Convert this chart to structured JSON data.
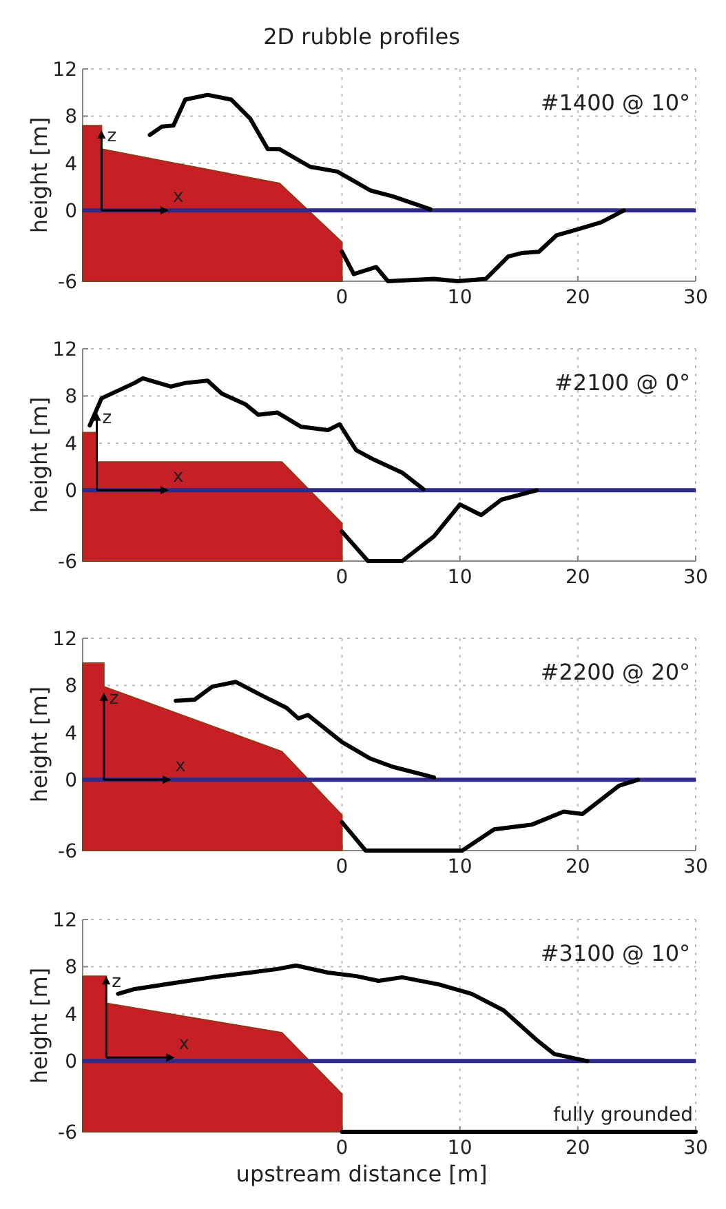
{
  "chart_data": [
    {
      "type": "line",
      "title": "2D rubble profiles",
      "ylabel": "height [m]",
      "xlim": [
        -22,
        30
      ],
      "ylim": [
        -6,
        12
      ],
      "xticks": [
        0,
        10,
        20,
        30
      ],
      "yticks": [
        -6,
        0,
        4,
        8,
        12
      ],
      "grid": true,
      "ref_lines": [
        {
          "axis": "y",
          "value": 0,
          "color": "#2e2a86"
        }
      ],
      "annotations": [
        "#1400 @ 10°",
        {
          "text": "z",
          "x": -20.4,
          "y": 6.8
        },
        {
          "text": "x",
          "x": -14.7,
          "y": 0
        }
      ],
      "series": [
        {
          "type": "area",
          "color": "#c62026",
          "x": [
            -22,
            -22,
            -20.4,
            -20.4,
            -5.3,
            0,
            0
          ],
          "values": [
            -6,
            7.2,
            7.2,
            5.2,
            2.3,
            -2.7,
            -6
          ]
        },
        {
          "color": "#000000",
          "x": [
            -16.3,
            -15.3,
            -14.3,
            -13.3,
            -11.4,
            -9.4,
            -7.8,
            -6.3,
            -5.3,
            -2.7,
            -0.4,
            2.4,
            4.3,
            7.5
          ],
          "values": [
            6.4,
            7.1,
            7.2,
            9.4,
            9.8,
            9.4,
            7.8,
            5.2,
            5.2,
            3.7,
            3.3,
            1.7,
            1.2,
            0.1
          ]
        },
        {
          "color": "#000000",
          "x": [
            0,
            1,
            2.9,
            3.9,
            7.8,
            9.8,
            12.2,
            14.1,
            15.3,
            16.7,
            18.2,
            20,
            22,
            23.9
          ],
          "values": [
            -3.5,
            -5.4,
            -4.8,
            -6,
            -5.8,
            -6,
            -5.8,
            -3.9,
            -3.6,
            -3.5,
            -2.1,
            -1.6,
            -1,
            0
          ]
        }
      ]
    },
    {
      "type": "line",
      "ylabel": "height [m]",
      "xlim": [
        -22,
        30
      ],
      "ylim": [
        -6,
        12
      ],
      "xticks": [
        0,
        10,
        20,
        30
      ],
      "yticks": [
        -6,
        0,
        4,
        8,
        12
      ],
      "grid": true,
      "ref_lines": [
        {
          "axis": "y",
          "value": 0,
          "color": "#2e2a86"
        }
      ],
      "annotations": [
        "#2100 @ 0°",
        {
          "text": "z",
          "x": -20.8,
          "y": 6.6
        },
        {
          "text": "x",
          "x": -14.7,
          "y": 0
        }
      ],
      "series": [
        {
          "type": "area",
          "color": "#c62026",
          "x": [
            -22,
            -22,
            -20.8,
            -20.8,
            -5.1,
            0,
            0
          ],
          "values": [
            -6,
            4.9,
            4.9,
            2.4,
            2.4,
            -2.8,
            -6
          ]
        },
        {
          "color": "#000000",
          "x": [
            -21.4,
            -20.4,
            -17.6,
            -16.9,
            -14.5,
            -13.3,
            -11.4,
            -10.2,
            -8.2,
            -7.1,
            -5.5,
            -3.5,
            -1.2,
            -0.2,
            1.2,
            2.7,
            5.1,
            6.9
          ],
          "values": [
            5.5,
            7.8,
            9.1,
            9.5,
            8.8,
            9.1,
            9.3,
            8.2,
            7.3,
            6.4,
            6.6,
            5.4,
            5.1,
            5.6,
            3.4,
            2.6,
            1.5,
            0.1
          ]
        },
        {
          "color": "#000000",
          "x": [
            0,
            2.2,
            5.1,
            7.8,
            10,
            11.8,
            13.5,
            16.5
          ],
          "values": [
            -3.5,
            -6,
            -6,
            -3.9,
            -1.2,
            -2.1,
            -0.8,
            0
          ]
        }
      ]
    },
    {
      "type": "line",
      "ylabel": "height [m]",
      "xlim": [
        -22,
        30
      ],
      "ylim": [
        -6,
        12
      ],
      "xticks": [
        0,
        10,
        20,
        30
      ],
      "yticks": [
        -6,
        0,
        4,
        8,
        12
      ],
      "grid": true,
      "ref_lines": [
        {
          "axis": "y",
          "value": 0,
          "color": "#2e2a86"
        }
      ],
      "annotations": [
        "#2200 @ 20°",
        {
          "text": "z",
          "x": -20.2,
          "y": 7.4
        },
        {
          "text": "x",
          "x": -14.5,
          "y": 0
        }
      ],
      "series": [
        {
          "type": "area",
          "color": "#c62026",
          "x": [
            -22,
            -22,
            -20.2,
            -20.2,
            -5.1,
            0,
            0
          ],
          "values": [
            -6,
            9.9,
            9.9,
            7.9,
            2.4,
            -3,
            -6
          ]
        },
        {
          "color": "#000000",
          "x": [
            -14.1,
            -12.5,
            -11,
            -9,
            -6.7,
            -4.7,
            -3.7,
            -2.9,
            0,
            2.4,
            4.3,
            7.8
          ],
          "values": [
            6.7,
            6.8,
            7.9,
            8.3,
            7.1,
            6.1,
            5.2,
            5.5,
            3.2,
            1.8,
            1.1,
            0.2
          ]
        },
        {
          "color": "#000000",
          "x": [
            0,
            2,
            10.2,
            12.9,
            16.1,
            18.8,
            20.4,
            23.5,
            25.1
          ],
          "values": [
            -3.6,
            -6,
            -6,
            -4.2,
            -3.8,
            -2.7,
            -2.9,
            -0.5,
            0
          ]
        }
      ]
    },
    {
      "type": "line",
      "xlabel": "upstream distance [m]",
      "ylabel": "height [m]",
      "xlim": [
        -22,
        30
      ],
      "ylim": [
        -6,
        12
      ],
      "xticks": [
        0,
        10,
        20,
        30
      ],
      "yticks": [
        -6,
        0,
        4,
        8,
        12
      ],
      "grid": true,
      "ref_lines": [
        {
          "axis": "y",
          "value": 0,
          "color": "#2e2a86"
        }
      ],
      "annotations": [
        "#3100 @ 10°",
        {
          "text": "z",
          "x": -20,
          "y": 7.2
        },
        {
          "text": "x",
          "x": -14.2,
          "y": 0.3
        },
        "fully grounded"
      ],
      "series": [
        {
          "type": "area",
          "color": "#c62026",
          "x": [
            -22,
            -22,
            -20,
            -20,
            -5.1,
            0,
            0
          ],
          "values": [
            -6,
            7.2,
            7.2,
            4.9,
            2.4,
            -2.8,
            -6
          ]
        },
        {
          "color": "#000000",
          "x": [
            -19,
            -17.6,
            -13.7,
            -11,
            -7.8,
            -5.5,
            -3.9,
            -1.2,
            1.2,
            3.1,
            5.1,
            8.2,
            11,
            13.7,
            16.5,
            18,
            20.8
          ],
          "values": [
            5.7,
            6.1,
            6.7,
            7.1,
            7.5,
            7.8,
            8.1,
            7.5,
            7.2,
            6.8,
            7.1,
            6.5,
            5.7,
            4.3,
            1.8,
            0.6,
            0
          ]
        },
        {
          "color": "#000000",
          "x": [
            0,
            30
          ],
          "values": [
            -6,
            -6
          ]
        }
      ]
    }
  ]
}
